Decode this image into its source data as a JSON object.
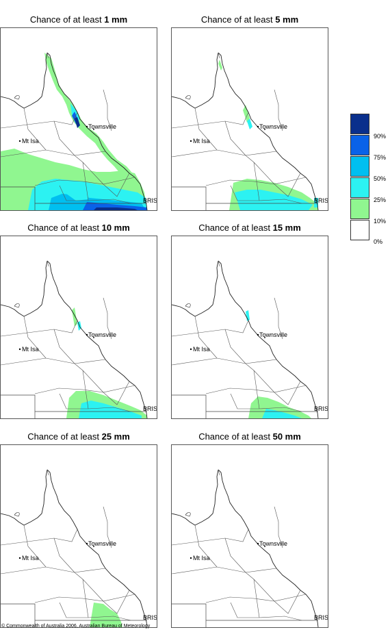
{
  "panels": [
    {
      "prefix": "Chance of at least ",
      "amount": "1 mm",
      "key": "p1"
    },
    {
      "prefix": "Chance of at least ",
      "amount": "5 mm",
      "key": "p5"
    },
    {
      "prefix": "Chance of at least ",
      "amount": "10 mm",
      "key": "p10"
    },
    {
      "prefix": "Chance of at least ",
      "amount": "15 mm",
      "key": "p15"
    },
    {
      "prefix": "Chance of at least ",
      "amount": "25 mm",
      "key": "p25"
    },
    {
      "prefix": "Chance of at least ",
      "amount": "50 mm",
      "key": "p50"
    }
  ],
  "places": {
    "townsville": "Townsville",
    "mt_isa": "Mt Isa",
    "bris": "BRIS"
  },
  "legend": {
    "labels": [
      "90%",
      "75%",
      "50%",
      "25%",
      "10%",
      "0%"
    ],
    "colors": [
      "#0a2f8c",
      "#0a62e8",
      "#00bff0",
      "#2cf2f2",
      "#90f690",
      "#ffffff"
    ]
  },
  "footer": "© Commonwealth of Australia 2006, Australian Bureau of Meteorology"
}
